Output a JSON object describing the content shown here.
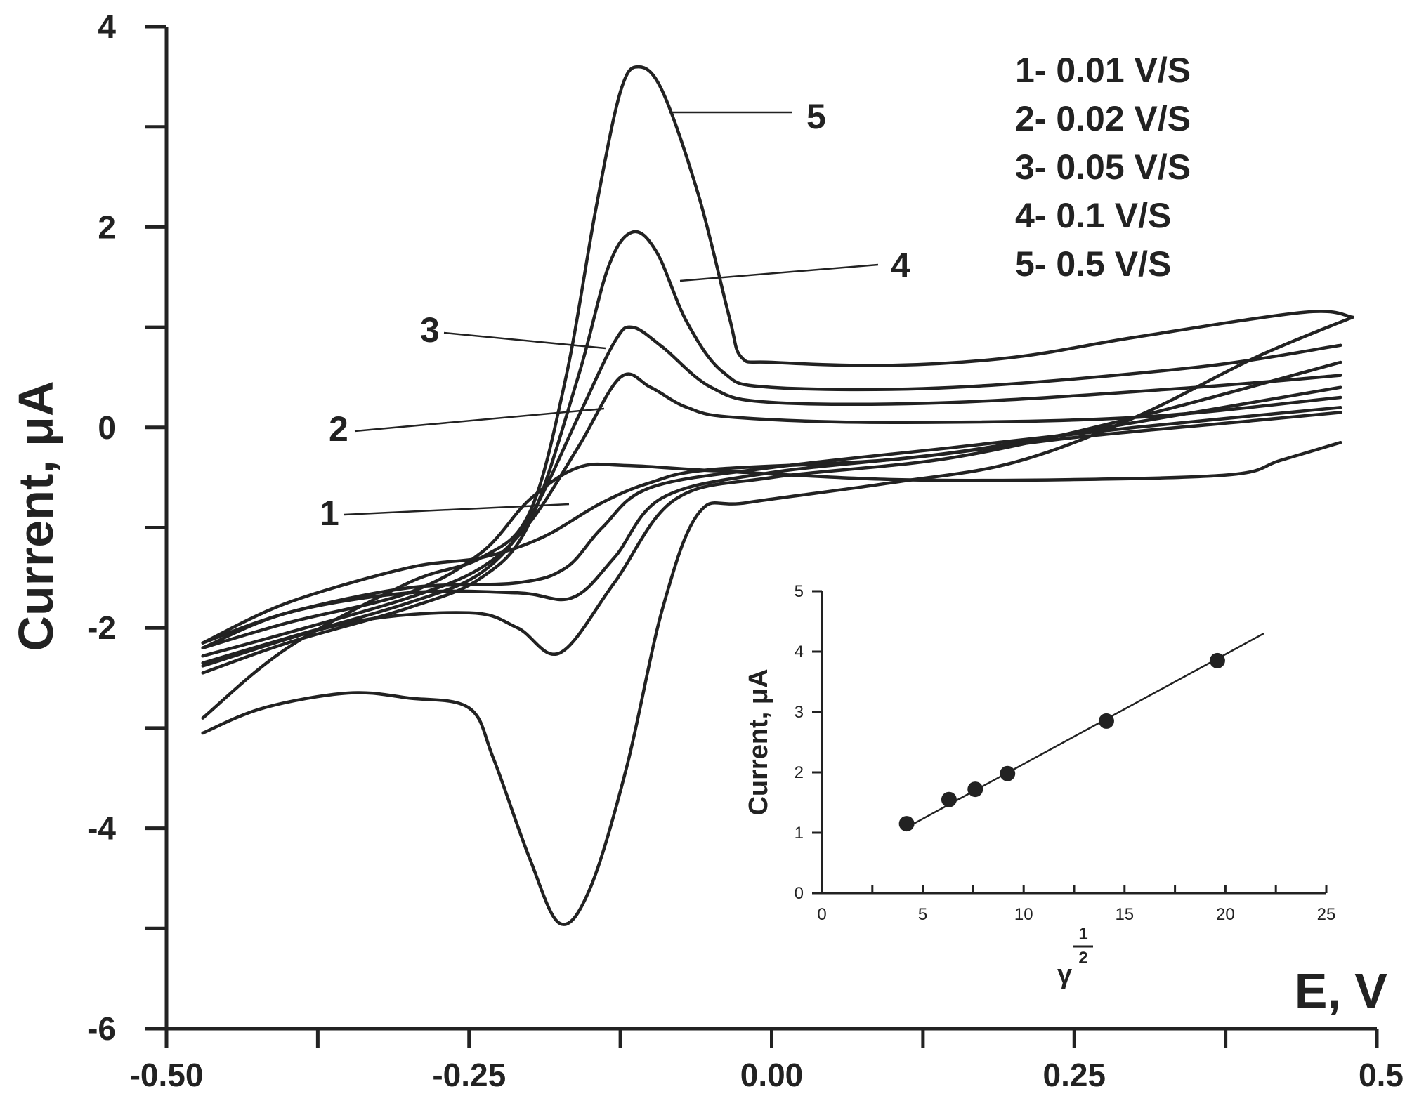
{
  "chart_data": [
    {
      "type": "line",
      "title": "",
      "xlabel": "E, V",
      "ylabel": "Current, μA",
      "xlim": [
        -0.5,
        0.5
      ],
      "ylim": [
        -6,
        4
      ],
      "x_ticks": [
        -0.5,
        -0.375,
        -0.25,
        -0.125,
        0.0,
        0.125,
        0.25,
        0.375,
        0.5
      ],
      "x_tick_labels": [
        "-0.50",
        "",
        "-0.25",
        "",
        "0.00",
        "",
        "0.25",
        "",
        "0.5"
      ],
      "y_ticks": [
        -6,
        -5,
        -4,
        -3,
        -2,
        -1,
        0,
        1,
        2,
        3,
        4
      ],
      "y_tick_labels": [
        "-6",
        "",
        "-4",
        "",
        "-2",
        "",
        "0",
        "",
        "2",
        "",
        "4"
      ],
      "legend": [
        "1- 0.01 V/S",
        "2- 0.02 V/S",
        "3- 0.05 V/S",
        "4- 0.1 V/S",
        "5- 0.5 V/S"
      ],
      "legend_position": "top-right",
      "curve_labels": [
        "1",
        "2",
        "3",
        "4",
        "5"
      ],
      "series": [
        {
          "name": "1",
          "forward": [
            [
              -0.47,
              -2.2
            ],
            [
              -0.4,
              -1.95
            ],
            [
              -0.3,
              -1.65
            ],
            [
              -0.24,
              -1.25
            ],
            [
              -0.2,
              -0.72
            ],
            [
              -0.16,
              -0.4
            ],
            [
              -0.12,
              -0.38
            ],
            [
              -0.05,
              -0.43
            ],
            [
              0.1,
              -0.52
            ],
            [
              0.25,
              -0.52
            ],
            [
              0.38,
              -0.47
            ],
            [
              0.42,
              -0.33
            ],
            [
              0.47,
              -0.15
            ]
          ],
          "reverse": [
            [
              0.47,
              0.15
            ],
            [
              0.4,
              0.07
            ],
            [
              0.25,
              -0.1
            ],
            [
              0.1,
              -0.32
            ],
            [
              -0.05,
              -0.42
            ],
            [
              -0.1,
              -0.55
            ],
            [
              -0.14,
              -0.75
            ],
            [
              -0.19,
              -1.1
            ],
            [
              -0.24,
              -1.3
            ],
            [
              -0.3,
              -1.4
            ],
            [
              -0.4,
              -1.75
            ],
            [
              -0.47,
              -2.15
            ]
          ]
        },
        {
          "name": "2",
          "forward": [
            [
              -0.47,
              -2.28
            ],
            [
              -0.4,
              -2.05
            ],
            [
              -0.3,
              -1.7
            ],
            [
              -0.24,
              -1.4
            ],
            [
              -0.2,
              -0.95
            ],
            [
              -0.16,
              -0.2
            ],
            [
              -0.125,
              0.5
            ],
            [
              -0.1,
              0.4
            ],
            [
              -0.07,
              0.2
            ],
            [
              -0.03,
              0.1
            ],
            [
              0.1,
              0.05
            ],
            [
              0.3,
              0.1
            ],
            [
              0.47,
              0.3
            ]
          ],
          "reverse": [
            [
              0.47,
              0.2
            ],
            [
              0.3,
              0.0
            ],
            [
              0.15,
              -0.2
            ],
            [
              0.0,
              -0.4
            ],
            [
              -0.1,
              -0.6
            ],
            [
              -0.14,
              -1.0
            ],
            [
              -0.17,
              -1.4
            ],
            [
              -0.21,
              -1.55
            ],
            [
              -0.3,
              -1.6
            ],
            [
              -0.4,
              -1.85
            ],
            [
              -0.47,
              -2.15
            ]
          ]
        },
        {
          "name": "3",
          "forward": [
            [
              -0.47,
              -2.35
            ],
            [
              -0.4,
              -2.1
            ],
            [
              -0.3,
              -1.75
            ],
            [
              -0.24,
              -1.45
            ],
            [
              -0.2,
              -0.9
            ],
            [
              -0.16,
              0.1
            ],
            [
              -0.13,
              0.85
            ],
            [
              -0.115,
              1.0
            ],
            [
              -0.09,
              0.8
            ],
            [
              -0.05,
              0.4
            ],
            [
              0.0,
              0.25
            ],
            [
              0.15,
              0.25
            ],
            [
              0.35,
              0.4
            ],
            [
              0.47,
              0.52
            ]
          ],
          "reverse": [
            [
              0.47,
              0.4
            ],
            [
              0.3,
              0.05
            ],
            [
              0.15,
              -0.25
            ],
            [
              0.0,
              -0.45
            ],
            [
              -0.09,
              -0.7
            ],
            [
              -0.13,
              -1.3
            ],
            [
              -0.165,
              -1.7
            ],
            [
              -0.21,
              -1.65
            ],
            [
              -0.3,
              -1.65
            ],
            [
              -0.4,
              -1.85
            ],
            [
              -0.47,
              -2.2
            ]
          ]
        },
        {
          "name": "4",
          "forward": [
            [
              -0.47,
              -2.45
            ],
            [
              -0.4,
              -2.15
            ],
            [
              -0.3,
              -1.8
            ],
            [
              -0.24,
              -1.5
            ],
            [
              -0.2,
              -0.95
            ],
            [
              -0.16,
              0.5
            ],
            [
              -0.135,
              1.6
            ],
            [
              -0.115,
              1.95
            ],
            [
              -0.095,
              1.75
            ],
            [
              -0.07,
              1.05
            ],
            [
              -0.04,
              0.55
            ],
            [
              0.0,
              0.4
            ],
            [
              0.15,
              0.4
            ],
            [
              0.35,
              0.6
            ],
            [
              0.47,
              0.82
            ]
          ],
          "reverse": [
            [
              0.47,
              0.65
            ],
            [
              0.3,
              0.1
            ],
            [
              0.15,
              -0.3
            ],
            [
              0.0,
              -0.5
            ],
            [
              -0.08,
              -0.72
            ],
            [
              -0.13,
              -1.55
            ],
            [
              -0.175,
              -2.25
            ],
            [
              -0.21,
              -2.0
            ],
            [
              -0.25,
              -1.85
            ],
            [
              -0.35,
              -1.95
            ],
            [
              -0.47,
              -2.38
            ]
          ]
        },
        {
          "name": "5",
          "forward": [
            [
              -0.47,
              -2.9
            ],
            [
              -0.4,
              -2.2
            ],
            [
              -0.3,
              -1.55
            ],
            [
              -0.24,
              -1.3
            ],
            [
              -0.2,
              -0.85
            ],
            [
              -0.17,
              0.5
            ],
            [
              -0.145,
              2.2
            ],
            [
              -0.125,
              3.35
            ],
            [
              -0.11,
              3.6
            ],
            [
              -0.09,
              3.35
            ],
            [
              -0.06,
              2.3
            ],
            [
              -0.035,
              1.1
            ],
            [
              -0.025,
              0.7
            ],
            [
              0.0,
              0.65
            ],
            [
              0.1,
              0.62
            ],
            [
              0.2,
              0.7
            ],
            [
              0.3,
              0.9
            ],
            [
              0.44,
              1.15
            ],
            [
              0.48,
              1.1
            ]
          ],
          "reverse": [
            [
              0.48,
              1.1
            ],
            [
              0.4,
              0.7
            ],
            [
              0.3,
              0.1
            ],
            [
              0.2,
              -0.35
            ],
            [
              0.1,
              -0.55
            ],
            [
              -0.02,
              -0.75
            ],
            [
              -0.06,
              -0.85
            ],
            [
              -0.09,
              -1.8
            ],
            [
              -0.12,
              -3.4
            ],
            [
              -0.15,
              -4.6
            ],
            [
              -0.175,
              -4.95
            ],
            [
              -0.2,
              -4.3
            ],
            [
              -0.23,
              -3.3
            ],
            [
              -0.25,
              -2.8
            ],
            [
              -0.3,
              -2.7
            ],
            [
              -0.35,
              -2.65
            ],
            [
              -0.42,
              -2.8
            ],
            [
              -0.47,
              -3.05
            ]
          ]
        }
      ]
    },
    {
      "type": "scatter",
      "title": "",
      "xlabel": "γ",
      "xlabel_exponent_num": "1",
      "xlabel_exponent_den": "2",
      "ylabel": "Current, μA",
      "xlim": [
        0,
        25
      ],
      "ylim": [
        0,
        5
      ],
      "x_ticks": [
        0,
        2.5,
        5,
        7.5,
        10,
        12.5,
        15,
        17.5,
        20,
        22.5,
        25
      ],
      "x_tick_labels": [
        "0",
        "",
        "5",
        "",
        "10",
        "",
        "15",
        "",
        "20",
        "",
        "25"
      ],
      "y_ticks": [
        0,
        1,
        2,
        3,
        4,
        5
      ],
      "y_tick_labels": [
        "0",
        "1",
        "2",
        "3",
        "4",
        "5"
      ],
      "points": [
        [
          4.2,
          1.15
        ],
        [
          6.3,
          1.55
        ],
        [
          7.6,
          1.72
        ],
        [
          9.2,
          1.98
        ],
        [
          14.1,
          2.85
        ],
        [
          19.6,
          3.85
        ]
      ],
      "fit_line": [
        [
          4.0,
          1.05
        ],
        [
          21.9,
          4.3
        ]
      ]
    }
  ]
}
